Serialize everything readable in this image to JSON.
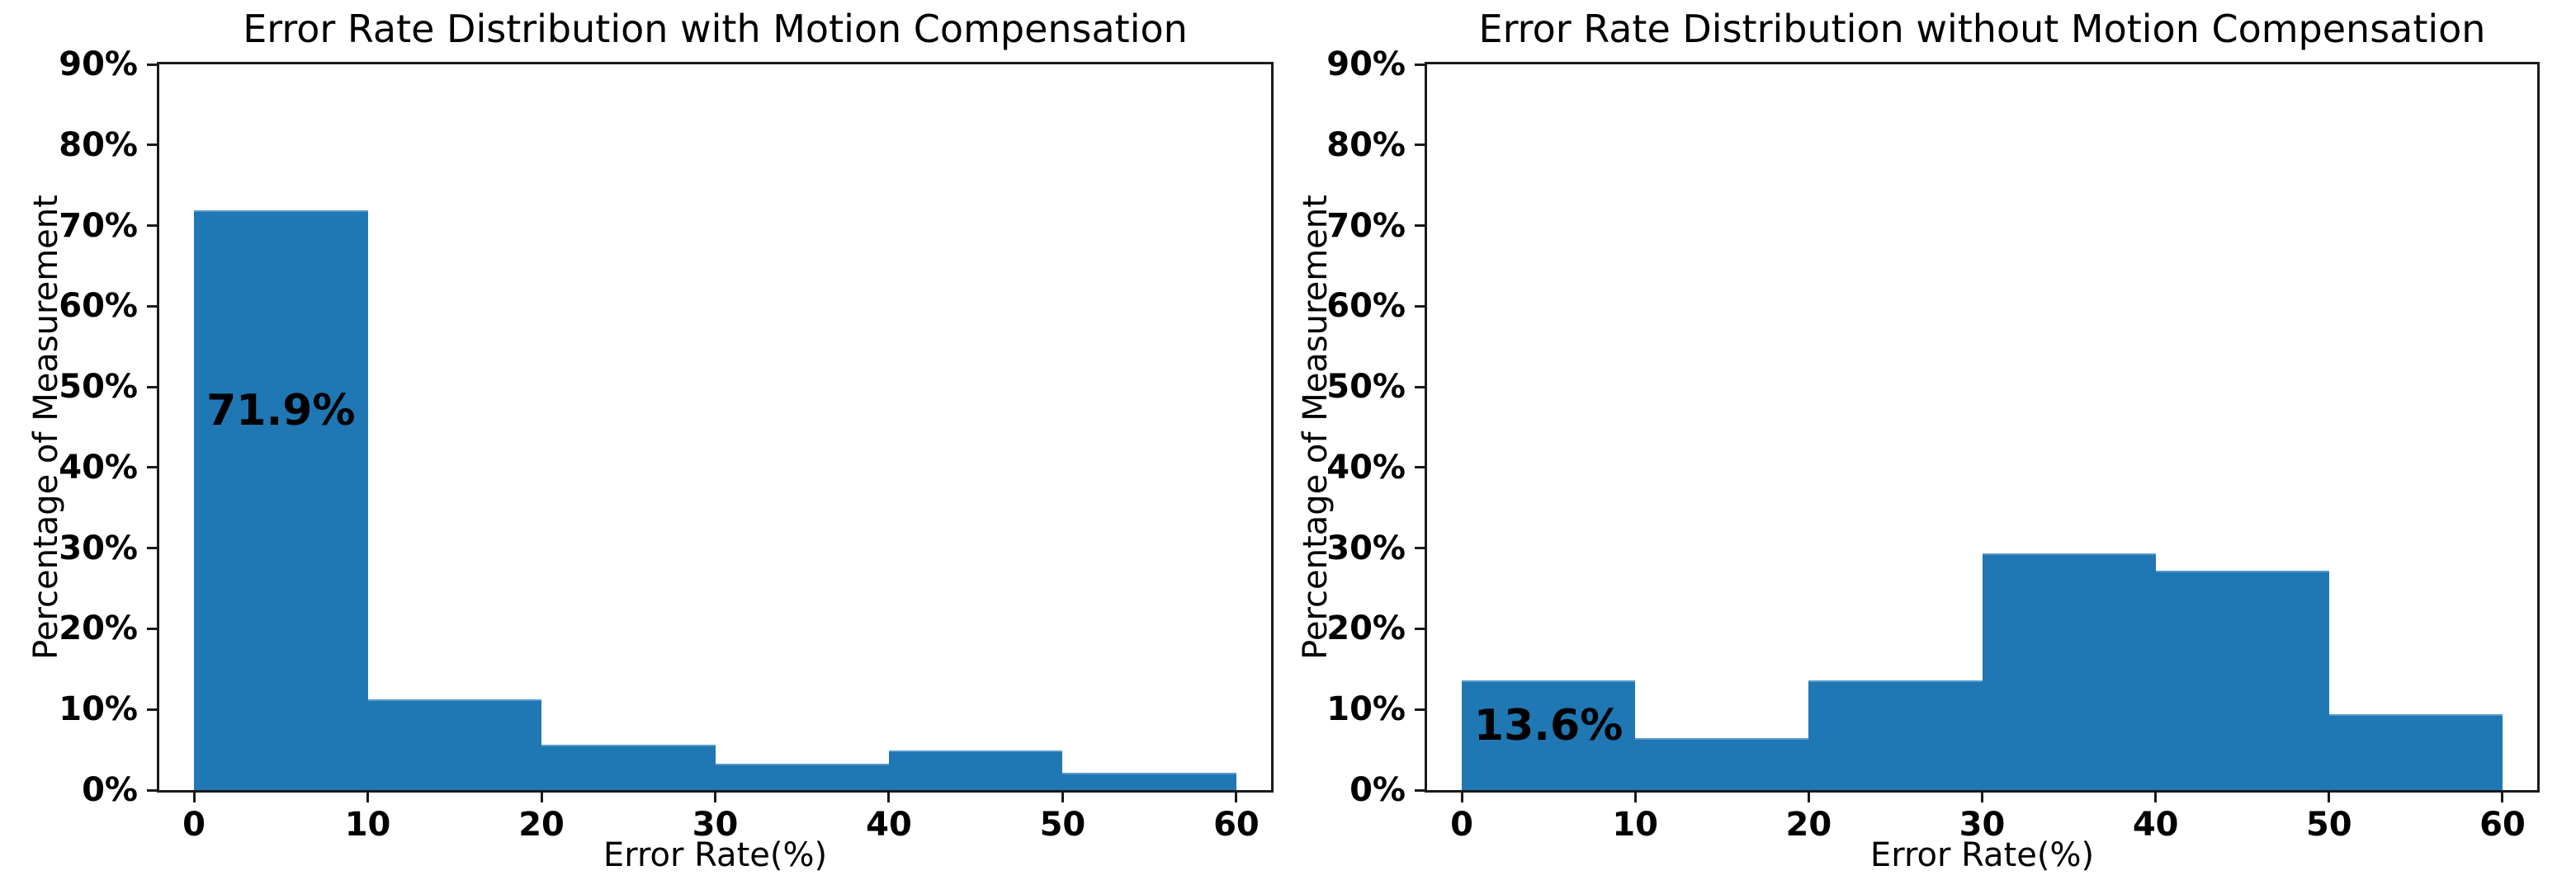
{
  "figure": {
    "background": "#ffffff",
    "text_color": "#000000",
    "axis_color": "#1a1a1a"
  },
  "chart_data": [
    {
      "type": "bar",
      "title": "Error Rate Distribution with Motion Compensation",
      "xlabel": "Error Rate(%)",
      "ylabel": "Percentage of Measurement",
      "bin_edges": [
        0,
        10,
        20,
        30,
        40,
        50,
        60
      ],
      "values": [
        71.9,
        11.3,
        5.6,
        3.3,
        4.9,
        2.1
      ],
      "ylim": [
        0,
        90
      ],
      "xlim": [
        -2,
        62
      ],
      "y_tick_labels": [
        "0%",
        "10%",
        "20%",
        "30%",
        "40%",
        "50%",
        "60%",
        "70%",
        "80%",
        "90%"
      ],
      "x_tick_labels": [
        "0",
        "10",
        "20",
        "30",
        "40",
        "50",
        "60"
      ],
      "bar_color": "#1f77b4",
      "grid": false,
      "legend": null,
      "annotation": {
        "text": "71.9%",
        "x": 5,
        "y": 47
      }
    },
    {
      "type": "bar",
      "title": "Error Rate Distribution without Motion Compensation",
      "xlabel": "Error Rate(%)",
      "ylabel": "Percentage of Measurement",
      "bin_edges": [
        0,
        10,
        20,
        30,
        40,
        50,
        60
      ],
      "values": [
        13.6,
        6.4,
        13.6,
        29.4,
        27.2,
        9.4
      ],
      "ylim": [
        0,
        90
      ],
      "xlim": [
        -2,
        62
      ],
      "y_tick_labels": [
        "0%",
        "10%",
        "20%",
        "30%",
        "40%",
        "50%",
        "60%",
        "70%",
        "80%",
        "90%"
      ],
      "x_tick_labels": [
        "0",
        "10",
        "20",
        "30",
        "40",
        "50",
        "60"
      ],
      "bar_color": "#1f77b4",
      "grid": false,
      "legend": null,
      "annotation": {
        "text": "13.6%",
        "x": 5,
        "y": 8
      }
    }
  ]
}
